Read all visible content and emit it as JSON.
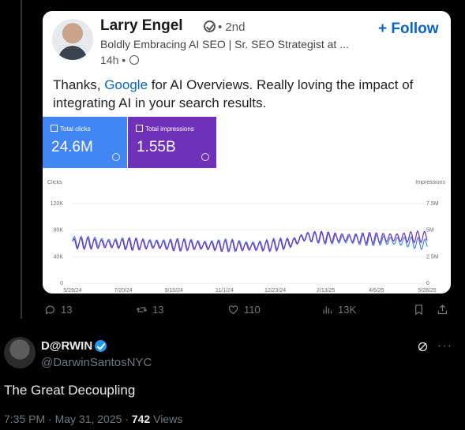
{
  "quoted_post": {
    "author": "Larry Engel",
    "degree": "• 2nd",
    "follow_label": "+ Follow",
    "headline": "Boldly Embracing AI SEO | Sr. SEO Strategist at ...",
    "time": "14h •",
    "text_before": "Thanks, ",
    "link_text": "Google",
    "text_after": " for AI Overviews. Really loving the impact of integrating AI in your search results.",
    "metrics": {
      "clicks_label": "Total clicks",
      "clicks_value": "24.6M",
      "impressions_label": "Total impressions",
      "impressions_value": "1.55B"
    }
  },
  "chart_data": {
    "type": "line",
    "left_axis_title": "Clicks",
    "right_axis_title": "Impressions",
    "left_ticks": [
      "120K",
      "80K",
      "40K",
      "0"
    ],
    "right_ticks": [
      "7.5M",
      "5M",
      "2.5M",
      "0"
    ],
    "x_ticks": [
      "5/29/24",
      "7/20/24",
      "9/10/24",
      "11/1/24",
      "12/23/24",
      "2/13/25",
      "4/6/25",
      "5/28/25"
    ],
    "series": [
      {
        "color": "#4285f4",
        "values": [
          63,
          62,
          62,
          61,
          61,
          60,
          60,
          60,
          59,
          59,
          59,
          58,
          58,
          58,
          57,
          57,
          58,
          60,
          62,
          70,
          69,
          67,
          66,
          66,
          65,
          65,
          64,
          63,
          61,
          58
        ]
      },
      {
        "color": "#6f31b8",
        "values": [
          60,
          60,
          59,
          59,
          59,
          58,
          58,
          58,
          57,
          57,
          57,
          56,
          56,
          56,
          55,
          55,
          56,
          58,
          61,
          70,
          70,
          69,
          69,
          68,
          68,
          68,
          69,
          69,
          70,
          70
        ]
      }
    ],
    "weekly_amplitude": 9
  },
  "actions": {
    "replies": "13",
    "reposts": "13",
    "likes": "110",
    "views": "13K"
  },
  "tweet": {
    "name": "D@RWIN",
    "handle": "@DarwinSantosNYC",
    "text": "The Great Decoupling",
    "time": "7:35 PM · May 31, 2025 · ",
    "views_count": "742",
    "views_label": " Views"
  },
  "colors": {
    "clicks_tile": "#4285f4",
    "impressions_tile": "#6f31b8",
    "linkedin_blue": "#0a66c2",
    "x_verified": "#1d9bf0"
  }
}
